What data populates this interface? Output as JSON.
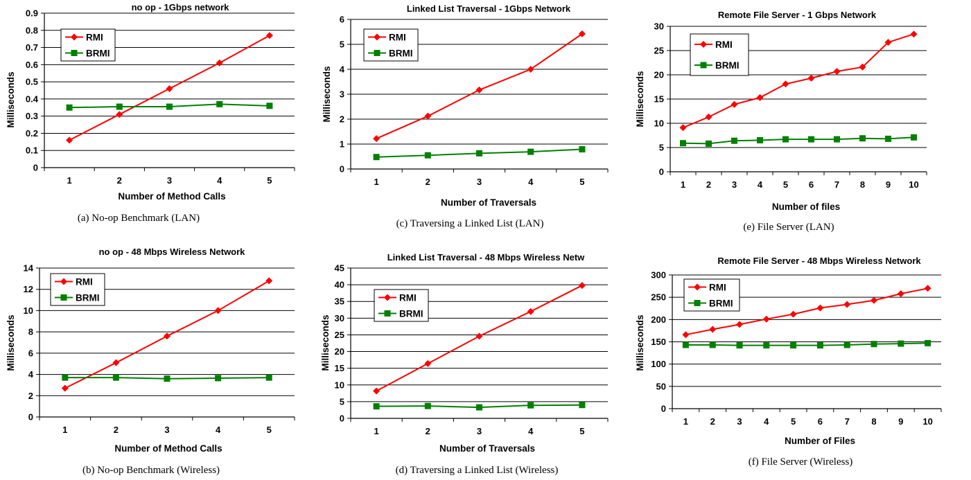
{
  "colors": {
    "rmi": "#ff0000",
    "brmi": "#008000",
    "grid": "#000000"
  },
  "chart_data": [
    {
      "type": "line",
      "title": "no op - 1Gbps network",
      "xlabel": "Number of Method Calls",
      "ylabel": "Milliseconds",
      "caption": "(a) No-op Benchmark (LAN)",
      "categories": [
        "1",
        "2",
        "3",
        "4",
        "5"
      ],
      "ylim": [
        0,
        0.9
      ],
      "yticks": [
        "0",
        "0.1",
        "0.2",
        "0.3",
        "0.4",
        "0.5",
        "0.6",
        "0.7",
        "0.8",
        "0.9"
      ],
      "grid": true,
      "legend_position": "top-left",
      "series": [
        {
          "name": "RMI",
          "values": [
            0.16,
            0.31,
            0.46,
            0.61,
            0.77
          ]
        },
        {
          "name": "BRMI",
          "values": [
            0.35,
            0.355,
            0.355,
            0.37,
            0.36
          ]
        }
      ]
    },
    {
      "type": "line",
      "title": "no op - 48 Mbps Wireless Network",
      "xlabel": "Number of Method Calls",
      "ylabel": "Milliseconds",
      "caption": "(b) No-op Benchmark (Wireless)",
      "categories": [
        "1",
        "2",
        "3",
        "4",
        "5"
      ],
      "ylim": [
        0,
        14
      ],
      "yticks": [
        "0",
        "2",
        "4",
        "6",
        "8",
        "10",
        "12",
        "14"
      ],
      "grid": true,
      "legend_position": "top-left",
      "series": [
        {
          "name": "RMI",
          "values": [
            2.7,
            5.1,
            7.6,
            10.0,
            12.8
          ]
        },
        {
          "name": "BRMI",
          "values": [
            3.7,
            3.7,
            3.6,
            3.65,
            3.7
          ]
        }
      ]
    },
    {
      "type": "line",
      "title": "Linked List Traversal - 1Gbps Network",
      "xlabel": "Number of Traversals",
      "ylabel": "Milliseconds",
      "caption": "(c) Traversing a Linked List (LAN)",
      "categories": [
        "1",
        "2",
        "3",
        "4",
        "5"
      ],
      "ylim": [
        0,
        6
      ],
      "yticks": [
        "0",
        "1",
        "2",
        "3",
        "4",
        "5",
        "6"
      ],
      "grid": true,
      "legend_position": "top-left",
      "series": [
        {
          "name": "RMI",
          "values": [
            1.22,
            2.12,
            3.17,
            4.0,
            5.42
          ]
        },
        {
          "name": "BRMI",
          "values": [
            0.48,
            0.55,
            0.63,
            0.69,
            0.79
          ]
        }
      ]
    },
    {
      "type": "line",
      "title": "Linked List Traversal - 48 Mbps Wireless Netw",
      "xlabel": "Number of Traversals",
      "ylabel": "Milliseconds",
      "caption": "(d) Traversing a Linked List (Wireless)",
      "categories": [
        "1",
        "2",
        "3",
        "4",
        "5"
      ],
      "ylim": [
        0,
        45
      ],
      "yticks": [
        "0",
        "5",
        "10",
        "15",
        "20",
        "25",
        "30",
        "35",
        "40",
        "45"
      ],
      "grid": true,
      "legend_position": "top-left",
      "series": [
        {
          "name": "RMI",
          "values": [
            8.2,
            16.4,
            24.6,
            32.0,
            39.8
          ]
        },
        {
          "name": "BRMI",
          "values": [
            3.6,
            3.7,
            3.3,
            3.9,
            4.0
          ]
        }
      ]
    },
    {
      "type": "line",
      "title": "Remote File Server - 1 Gbps Network",
      "xlabel": "Number of files",
      "ylabel": "Milliseconds",
      "caption": "(e) File Server (LAN)",
      "categories": [
        "1",
        "2",
        "3",
        "4",
        "5",
        "6",
        "7",
        "8",
        "9",
        "10"
      ],
      "ylim": [
        0,
        30
      ],
      "yticks": [
        "0",
        "5",
        "10",
        "15",
        "20",
        "25",
        "30"
      ],
      "grid": true,
      "legend_position": "top-left",
      "series": [
        {
          "name": "RMI",
          "values": [
            9.1,
            11.3,
            13.9,
            15.3,
            18.1,
            19.3,
            20.7,
            21.6,
            26.7,
            28.4
          ]
        },
        {
          "name": "BRMI",
          "values": [
            5.9,
            5.8,
            6.4,
            6.5,
            6.7,
            6.7,
            6.7,
            6.9,
            6.8,
            7.1
          ]
        }
      ]
    },
    {
      "type": "line",
      "title": "Remote File Server - 48 Mbps Wireless Network",
      "xlabel": "Number of Files",
      "ylabel": "Milliseconds",
      "caption": "(f) File Server (Wireless)",
      "categories": [
        "1",
        "2",
        "3",
        "4",
        "5",
        "6",
        "7",
        "8",
        "9",
        "10"
      ],
      "ylim": [
        0,
        300
      ],
      "yticks": [
        "0",
        "50",
        "100",
        "150",
        "200",
        "250",
        "300"
      ],
      "grid": true,
      "legend_position": "top-left",
      "series": [
        {
          "name": "RMI",
          "values": [
            166,
            178,
            189,
            201,
            212,
            226,
            234,
            243,
            258,
            270
          ]
        },
        {
          "name": "BRMI",
          "values": [
            143,
            143,
            142,
            142,
            142,
            142,
            143,
            145,
            146,
            147
          ]
        }
      ]
    }
  ]
}
